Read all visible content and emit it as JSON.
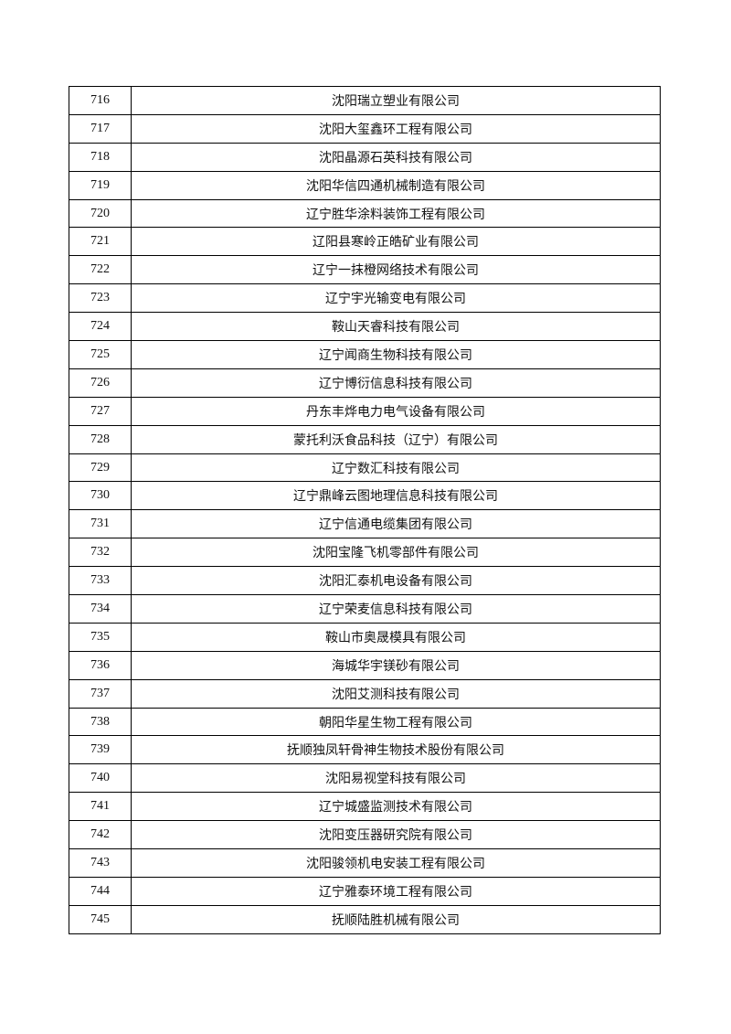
{
  "table": {
    "rows": [
      [
        716,
        "沈阳瑞立塑业有限公司"
      ],
      [
        717,
        "沈阳大玺鑫环工程有限公司"
      ],
      [
        718,
        "沈阳晶源石英科技有限公司"
      ],
      [
        719,
        "沈阳华信四通机械制造有限公司"
      ],
      [
        720,
        "辽宁胜华涂料装饰工程有限公司"
      ],
      [
        721,
        "辽阳县寒岭正皓矿业有限公司"
      ],
      [
        722,
        "辽宁一抹橙网络技术有限公司"
      ],
      [
        723,
        "辽宁宇光输变电有限公司"
      ],
      [
        724,
        "鞍山天睿科技有限公司"
      ],
      [
        725,
        "辽宁闻商生物科技有限公司"
      ],
      [
        726,
        "辽宁博衍信息科技有限公司"
      ],
      [
        727,
        "丹东丰烨电力电气设备有限公司"
      ],
      [
        728,
        "蒙托利沃食品科技（辽宁）有限公司"
      ],
      [
        729,
        "辽宁数汇科技有限公司"
      ],
      [
        730,
        "辽宁鼎峰云图地理信息科技有限公司"
      ],
      [
        731,
        "辽宁信通电缆集团有限公司"
      ],
      [
        732,
        "沈阳宝隆飞机零部件有限公司"
      ],
      [
        733,
        "沈阳汇泰机电设备有限公司"
      ],
      [
        734,
        "辽宁荣麦信息科技有限公司"
      ],
      [
        735,
        "鞍山市奥晟模具有限公司"
      ],
      [
        736,
        "海城华宇镁砂有限公司"
      ],
      [
        737,
        "沈阳艾测科技有限公司"
      ],
      [
        738,
        "朝阳华星生物工程有限公司"
      ],
      [
        739,
        "抚顺独凤轩骨神生物技术股份有限公司"
      ],
      [
        740,
        "沈阳易视堂科技有限公司"
      ],
      [
        741,
        "辽宁城盛监测技术有限公司"
      ],
      [
        742,
        "沈阳变压器研究院有限公司"
      ],
      [
        743,
        "沈阳骏领机电安装工程有限公司"
      ],
      [
        744,
        "辽宁雅泰环境工程有限公司"
      ],
      [
        745,
        "抚顺陆胜机械有限公司"
      ]
    ]
  }
}
